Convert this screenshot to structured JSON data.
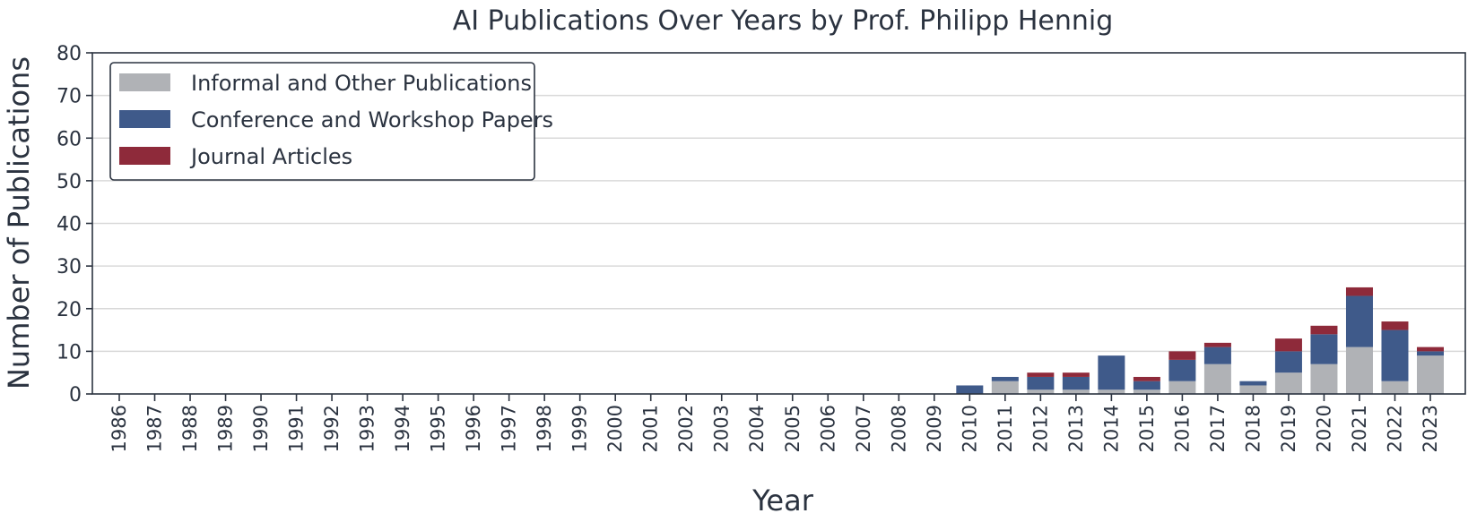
{
  "chart_data": {
    "type": "bar",
    "stacked": true,
    "title": "AI Publications Over Years by Prof. Philipp Hennig",
    "xlabel": "Year",
    "ylabel": "Number of Publications",
    "ylim": [
      0,
      80
    ],
    "yticks": [
      0,
      10,
      20,
      30,
      40,
      50,
      60,
      70,
      80
    ],
    "grid": "horizontal",
    "legend_position": "top-left",
    "categories": [
      "1986",
      "1987",
      "1988",
      "1989",
      "1990",
      "1991",
      "1992",
      "1993",
      "1994",
      "1995",
      "1996",
      "1997",
      "1998",
      "1999",
      "2000",
      "2001",
      "2002",
      "2003",
      "2004",
      "2005",
      "2006",
      "2007",
      "2008",
      "2009",
      "2010",
      "2011",
      "2012",
      "2013",
      "2014",
      "2015",
      "2016",
      "2017",
      "2018",
      "2019",
      "2020",
      "2021",
      "2022",
      "2023"
    ],
    "series": [
      {
        "name": "Informal and Other Publications",
        "color": "#b0b2b6",
        "values": [
          0,
          0,
          0,
          0,
          0,
          0,
          0,
          0,
          0,
          0,
          0,
          0,
          0,
          0,
          0,
          0,
          0,
          0,
          0,
          0,
          0,
          0,
          0,
          0,
          0,
          3,
          1,
          1,
          1,
          1,
          3,
          7,
          2,
          5,
          7,
          11,
          3,
          9
        ]
      },
      {
        "name": "Conference and Workshop Papers",
        "color": "#3f5a8a",
        "values": [
          0,
          0,
          0,
          0,
          0,
          0,
          0,
          0,
          0,
          0,
          0,
          0,
          0,
          0,
          0,
          0,
          0,
          0,
          0,
          0,
          0,
          0,
          0,
          0,
          2,
          1,
          3,
          3,
          8,
          2,
          5,
          4,
          1,
          5,
          7,
          12,
          12,
          1
        ]
      },
      {
        "name": "Journal Articles",
        "color": "#8e2a3a",
        "values": [
          0,
          0,
          0,
          0,
          0,
          0,
          0,
          0,
          0,
          0,
          0,
          0,
          0,
          0,
          0,
          0,
          0,
          0,
          0,
          0,
          0,
          0,
          0,
          0,
          0,
          0,
          1,
          1,
          0,
          1,
          2,
          1,
          0,
          3,
          2,
          2,
          2,
          1
        ]
      }
    ]
  }
}
